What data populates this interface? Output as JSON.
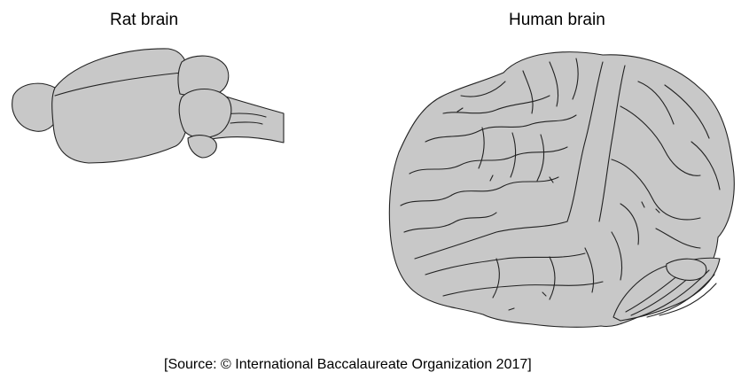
{
  "labels": {
    "rat": "Rat brain",
    "human": "Human brain"
  },
  "source": "[Source: © International Baccalaureate Organization 2017]",
  "colors": {
    "brain_fill": "#c8c8c8",
    "outline": "#222222",
    "background": "#ffffff"
  }
}
